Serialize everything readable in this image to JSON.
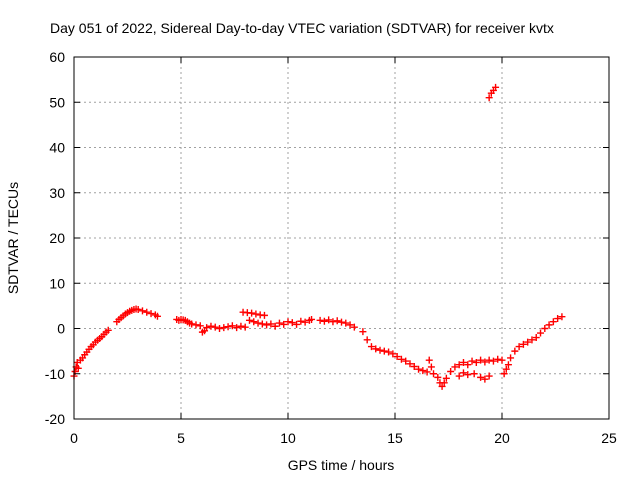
{
  "chart_data": {
    "type": "scatter",
    "title": "Day 051 of 2022, Sidereal Day-to-day VTEC variation (SDTVAR) for receiver kvtx",
    "xlabel": "GPS time / hours",
    "ylabel": "SDTVAR / TECUs",
    "xlim": [
      0,
      25
    ],
    "ylim": [
      -20,
      60
    ],
    "xticks": [
      0,
      5,
      10,
      15,
      20,
      25
    ],
    "yticks": [
      -20,
      -10,
      0,
      10,
      20,
      30,
      40,
      50,
      60
    ],
    "grid": true,
    "marker": "+",
    "color": "#ff0000",
    "series": [
      {
        "name": "kvtx",
        "points": [
          [
            0.0,
            -10.5
          ],
          [
            0.05,
            -9.5
          ],
          [
            0.1,
            -8.5
          ],
          [
            0.15,
            -7.5
          ],
          [
            0.2,
            -8.8
          ],
          [
            0.3,
            -7.0
          ],
          [
            0.4,
            -6.5
          ],
          [
            0.5,
            -5.8
          ],
          [
            0.6,
            -5.2
          ],
          [
            0.7,
            -4.6
          ],
          [
            0.8,
            -4.0
          ],
          [
            0.9,
            -3.6
          ],
          [
            1.0,
            -3.0
          ],
          [
            1.1,
            -2.6
          ],
          [
            1.2,
            -2.2
          ],
          [
            1.3,
            -1.8
          ],
          [
            1.4,
            -1.3
          ],
          [
            1.5,
            -0.8
          ],
          [
            1.6,
            -0.4
          ],
          [
            2.0,
            1.5
          ],
          [
            2.1,
            2.0
          ],
          [
            2.2,
            2.4
          ],
          [
            2.3,
            2.8
          ],
          [
            2.4,
            3.2
          ],
          [
            2.5,
            3.5
          ],
          [
            2.6,
            3.8
          ],
          [
            2.7,
            4.0
          ],
          [
            2.8,
            4.2
          ],
          [
            2.9,
            4.3
          ],
          [
            3.0,
            4.2
          ],
          [
            3.2,
            3.9
          ],
          [
            3.4,
            3.6
          ],
          [
            3.6,
            3.3
          ],
          [
            3.8,
            3.0
          ],
          [
            3.9,
            2.7
          ],
          [
            4.8,
            2.0
          ],
          [
            4.9,
            1.8
          ],
          [
            5.0,
            2.0
          ],
          [
            5.1,
            1.9
          ],
          [
            5.2,
            1.8
          ],
          [
            5.3,
            1.5
          ],
          [
            5.4,
            1.2
          ],
          [
            5.5,
            1.0
          ],
          [
            5.7,
            0.8
          ],
          [
            5.9,
            0.6
          ],
          [
            6.0,
            -0.8
          ],
          [
            6.1,
            -0.5
          ],
          [
            6.2,
            0.2
          ],
          [
            6.4,
            0.5
          ],
          [
            6.6,
            0.3
          ],
          [
            6.8,
            0.0
          ],
          [
            7.0,
            0.2
          ],
          [
            7.2,
            0.4
          ],
          [
            7.4,
            0.6
          ],
          [
            7.6,
            0.2
          ],
          [
            7.8,
            0.5
          ],
          [
            8.0,
            0.3
          ],
          [
            8.2,
            1.8
          ],
          [
            8.4,
            1.5
          ],
          [
            8.6,
            1.2
          ],
          [
            8.8,
            1.0
          ],
          [
            9.0,
            0.8
          ],
          [
            9.2,
            1.0
          ],
          [
            9.4,
            0.5
          ],
          [
            9.6,
            1.2
          ],
          [
            9.8,
            0.9
          ],
          [
            7.9,
            3.6
          ],
          [
            8.1,
            3.5
          ],
          [
            8.3,
            3.4
          ],
          [
            8.5,
            3.2
          ],
          [
            8.7,
            3.0
          ],
          [
            8.9,
            2.9
          ],
          [
            10.0,
            1.5
          ],
          [
            10.2,
            1.3
          ],
          [
            10.4,
            0.9
          ],
          [
            10.6,
            1.6
          ],
          [
            10.8,
            1.4
          ],
          [
            11.0,
            1.8
          ],
          [
            11.1,
            2.0
          ],
          [
            11.5,
            1.8
          ],
          [
            11.7,
            1.6
          ],
          [
            11.9,
            1.9
          ],
          [
            12.1,
            1.5
          ],
          [
            12.3,
            1.7
          ],
          [
            12.5,
            1.4
          ],
          [
            12.7,
            1.2
          ],
          [
            12.9,
            0.8
          ],
          [
            13.1,
            0.3
          ],
          [
            13.5,
            -0.7
          ],
          [
            13.7,
            -2.5
          ],
          [
            13.9,
            -4.0
          ],
          [
            14.1,
            -4.5
          ],
          [
            14.3,
            -4.8
          ],
          [
            14.5,
            -5.0
          ],
          [
            14.7,
            -5.2
          ],
          [
            14.9,
            -5.6
          ],
          [
            15.1,
            -6.2
          ],
          [
            15.3,
            -6.8
          ],
          [
            15.5,
            -7.2
          ],
          [
            15.7,
            -7.8
          ],
          [
            15.9,
            -8.4
          ],
          [
            16.1,
            -9.0
          ],
          [
            16.3,
            -9.3
          ],
          [
            16.5,
            -9.6
          ],
          [
            16.6,
            -7.0
          ],
          [
            16.7,
            -8.5
          ],
          [
            16.8,
            -10.0
          ],
          [
            17.0,
            -10.8
          ],
          [
            17.1,
            -12.0
          ],
          [
            17.2,
            -12.8
          ],
          [
            17.3,
            -12.0
          ],
          [
            17.4,
            -11.0
          ],
          [
            17.6,
            -9.5
          ],
          [
            17.8,
            -8.5
          ],
          [
            18.0,
            -8.0
          ],
          [
            18.2,
            -7.5
          ],
          [
            18.4,
            -8.0
          ],
          [
            18.6,
            -7.2
          ],
          [
            18.8,
            -7.5
          ],
          [
            19.0,
            -7.0
          ],
          [
            19.2,
            -7.4
          ],
          [
            19.4,
            -7.0
          ],
          [
            19.6,
            -7.2
          ],
          [
            19.8,
            -6.8
          ],
          [
            20.0,
            -7.0
          ],
          [
            18.0,
            -10.5
          ],
          [
            18.2,
            -9.8
          ],
          [
            18.4,
            -10.2
          ],
          [
            18.7,
            -10.0
          ],
          [
            19.0,
            -10.8
          ],
          [
            19.2,
            -11.2
          ],
          [
            19.4,
            -10.5
          ],
          [
            19.4,
            51.0
          ],
          [
            19.5,
            52.0
          ],
          [
            19.6,
            52.6
          ],
          [
            19.7,
            53.3
          ],
          [
            20.1,
            -10.0
          ],
          [
            20.2,
            -9.0
          ],
          [
            20.3,
            -8.0
          ],
          [
            20.4,
            -6.5
          ],
          [
            20.6,
            -5.0
          ],
          [
            20.8,
            -4.0
          ],
          [
            21.0,
            -3.5
          ],
          [
            21.2,
            -3.0
          ],
          [
            21.4,
            -2.5
          ],
          [
            21.6,
            -2.0
          ],
          [
            21.8,
            -1.0
          ],
          [
            22.0,
            0.0
          ],
          [
            22.2,
            0.8
          ],
          [
            22.4,
            1.5
          ],
          [
            22.6,
            2.2
          ],
          [
            22.8,
            2.6
          ]
        ]
      }
    ]
  }
}
